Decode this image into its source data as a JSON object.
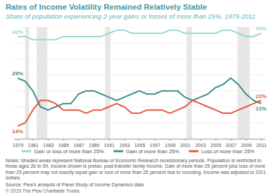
{
  "chart_data": {
    "type": "line",
    "title": "Rates of Income Volatility Remained Relatively Stable",
    "subtitle": "Share of population experiencing 2-year gains or losses of more than 25%, 1979-2011",
    "x": [
      1979,
      1980,
      1981,
      1982,
      1983,
      1984,
      1985,
      1986,
      1987,
      1988,
      1989,
      1990,
      1991,
      1992,
      1993,
      1994,
      1995,
      1996,
      1997,
      1998,
      1999,
      2000,
      2001,
      2002,
      2003,
      2004,
      2005,
      2006,
      2007,
      2008,
      2009,
      2010,
      2011
    ],
    "xlim": [
      1978.5,
      2011.5
    ],
    "xticks": [
      1979,
      1981,
      1983,
      1985,
      1987,
      1989,
      1991,
      1993,
      1995,
      1997,
      1999,
      2001,
      2003,
      2005,
      2007,
      2009,
      2011
    ],
    "ylim": [
      10,
      45
    ],
    "yticks": [
      10,
      15,
      20,
      25,
      30,
      35,
      40,
      45
    ],
    "grid": true,
    "tick_labels": "x",
    "data_labels": true,
    "legend": "bottom",
    "series": [
      {
        "name": "Gain or loss of more than 25%",
        "color": "#9ad7d2",
        "values": [
          42,
          42,
          41,
          41,
          41,
          41,
          42,
          42,
          42,
          42,
          42,
          42,
          43,
          44,
          44,
          43,
          43,
          43,
          43,
          43,
          44,
          44,
          43,
          43,
          43,
          43,
          43,
          44,
          44,
          43,
          42,
          42,
          43
        ],
        "value_labels": [
          "42%",
          null,
          null,
          null,
          null,
          null,
          null,
          null,
          null,
          null,
          null,
          null,
          null,
          null,
          null,
          null,
          null,
          null,
          null,
          null,
          null,
          null,
          null,
          null,
          null,
          null,
          null,
          null,
          null,
          null,
          null,
          null,
          "43%"
        ]
      },
      {
        "name": "Gain of more than 25%",
        "color": "#3d8e8c",
        "values": [
          29,
          28,
          25,
          20,
          19,
          20,
          21,
          21,
          24,
          25,
          25,
          24,
          23,
          22,
          23,
          24,
          25,
          24,
          24,
          25,
          25,
          25,
          23,
          22,
          23,
          24,
          26,
          27,
          29,
          27,
          24,
          22,
          21
        ],
        "value_labels": [
          "29%",
          null,
          null,
          null,
          null,
          null,
          null,
          null,
          null,
          null,
          null,
          null,
          null,
          null,
          null,
          null,
          null,
          null,
          null,
          null,
          null,
          null,
          null,
          null,
          null,
          null,
          null,
          null,
          null,
          null,
          null,
          null,
          "21%"
        ]
      },
      {
        "name": "Loss of more than 25%",
        "color": "#e2573b",
        "values": [
          14,
          15,
          19,
          22,
          22,
          21,
          19,
          19,
          19,
          18,
          19,
          19,
          20,
          21,
          20,
          18,
          18,
          19,
          19,
          19,
          18,
          19,
          20,
          22,
          21,
          20,
          19,
          18,
          18,
          19,
          20,
          21,
          22
        ],
        "value_labels": [
          "14%",
          null,
          null,
          null,
          null,
          null,
          null,
          null,
          null,
          null,
          null,
          null,
          null,
          null,
          null,
          null,
          null,
          null,
          null,
          null,
          null,
          null,
          null,
          null,
          null,
          null,
          null,
          null,
          null,
          null,
          null,
          null,
          "22%"
        ]
      }
    ],
    "recessions": [
      {
        "start": 1980.0,
        "end": 1980.5
      },
      {
        "start": 1981.5,
        "end": 1982.9
      },
      {
        "start": 1990.5,
        "end": 1991.2
      },
      {
        "start": 2001.2,
        "end": 2001.9
      },
      {
        "start": 2007.9,
        "end": 2009.5
      }
    ],
    "notes": "Notes: Shaded areas represent National Bureau of Economic Research recessionary periods. Population is restricted to those ages 26 to 59. Income shown is pretax, post-transfer family income. Gain of more than 25 percent plus loss of more than 25 percent may not exactly equal gain or loss of more than 25 percent due to rounding. Income was adjusted to 2011 dollars.",
    "source": "Source: Pew's analysis of Panel Study of Income Dynamics data",
    "copyright": "© 2015 The Pew Charitable Trusts"
  }
}
